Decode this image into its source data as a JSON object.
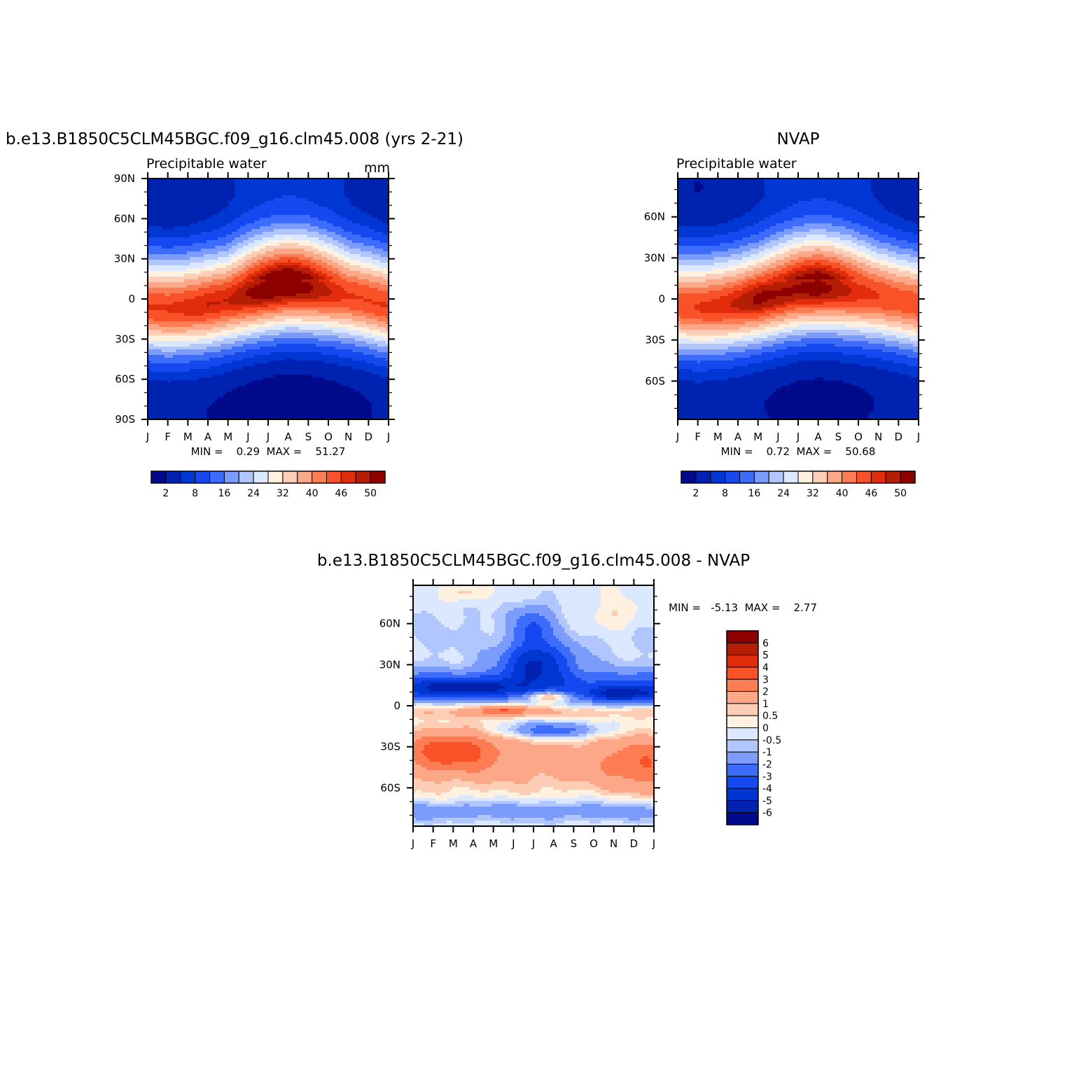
{
  "chart_data": [
    {
      "type": "heatmap",
      "title": "b.e13.B1850C5CLM45BGC.f09_g16.clm45.008 (yrs 2-21)",
      "left_string": "Precipitable water",
      "right_string": "mm",
      "x_tick_labels": [
        "J",
        "F",
        "M",
        "A",
        "M",
        "J",
        "J",
        "A",
        "S",
        "O",
        "N",
        "D",
        "J"
      ],
      "y_tick_labels": [
        "90N",
        "60N",
        "30N",
        "0",
        "30S",
        "60S",
        "90S"
      ],
      "y_tick_values": [
        90,
        60,
        30,
        0,
        -30,
        -60,
        -90
      ],
      "ylim": [
        -90,
        90
      ],
      "min_max_text": "MIN =    0.29  MAX =    51.27",
      "stats": {
        "min": 0.29,
        "max": 51.27
      },
      "field": {
        "eq_lat_by_month": [
          -6,
          -7,
          -6,
          -4,
          -1,
          3,
          6,
          8,
          7,
          5,
          2,
          -1,
          -5
        ],
        "peak_by_month": [
          46,
          46,
          47,
          48,
          48,
          50,
          51.3,
          51,
          50,
          48,
          46,
          46,
          46
        ],
        "width_lat": 34,
        "south_polar_base": 0.8,
        "north_polar_base": 2,
        "north_seasonal_amp": 5,
        "month_of_max": 7,
        "ridge_asymmetry": "north-broad"
      },
      "colorbar": {
        "orientation": "horizontal",
        "labels": [
          "2",
          "8",
          "16",
          "24",
          "32",
          "40",
          "46",
          "50"
        ],
        "levels": [
          2,
          5,
          8,
          12,
          16,
          20,
          24,
          28,
          32,
          36,
          40,
          43,
          46,
          48,
          50
        ],
        "label_every_other": true
      }
    },
    {
      "type": "heatmap",
      "title": "NVAP",
      "left_string": "Precipitable water",
      "right_string": "",
      "x_tick_labels": [
        "J",
        "F",
        "M",
        "A",
        "M",
        "J",
        "J",
        "A",
        "S",
        "O",
        "N",
        "D",
        "J"
      ],
      "y_tick_labels": [
        "60N",
        "30N",
        "0",
        "30S",
        "60S"
      ],
      "y_tick_values": [
        60,
        30,
        0,
        -30,
        -60
      ],
      "ylim": [
        -88,
        88
      ],
      "min_max_text": "MIN =    0.72  MAX =    50.68",
      "stats": {
        "min": 0.72,
        "max": 50.68
      },
      "field": {
        "eq_lat_by_month": [
          -5,
          -6,
          -5,
          -3,
          0,
          3,
          6,
          7,
          6,
          4,
          2,
          -1,
          -4
        ],
        "peak_by_month": [
          45,
          46,
          47,
          48.5,
          50.6,
          50,
          50,
          50.6,
          49,
          47,
          46,
          45,
          45
        ],
        "width_lat": 33,
        "south_polar_base": 1.5,
        "north_polar_base": 2,
        "north_seasonal_amp": 5,
        "month_of_max": 7,
        "ridge_asymmetry": "north-broad"
      },
      "colorbar": {
        "orientation": "horizontal",
        "labels": [
          "2",
          "8",
          "16",
          "24",
          "32",
          "40",
          "46",
          "50"
        ],
        "levels": [
          2,
          5,
          8,
          12,
          16,
          20,
          24,
          28,
          32,
          36,
          40,
          43,
          46,
          48,
          50
        ],
        "label_every_other": true
      }
    },
    {
      "type": "heatmap",
      "title": "b.e13.B1850C5CLM45BGC.f09_g16.clm45.008 - NVAP",
      "x_tick_labels": [
        "J",
        "F",
        "M",
        "A",
        "M",
        "J",
        "J",
        "A",
        "S",
        "O",
        "N",
        "D",
        "J"
      ],
      "y_tick_labels": [
        "60N",
        "30N",
        "0",
        "30S",
        "60S"
      ],
      "y_tick_values": [
        60,
        30,
        0,
        -30,
        -60
      ],
      "ylim": [
        -88,
        88
      ],
      "min_max_text": "MIN =   -5.13  MAX =    2.77",
      "stats": {
        "min": -5.13,
        "max": 2.77
      },
      "field": {
        "blobs": [
          {
            "month": 6.2,
            "lat": 32,
            "sm": 1.8,
            "sl": 14,
            "amp": -4.5
          },
          {
            "month": 6.0,
            "lat": 58,
            "sm": 1.0,
            "sl": 15,
            "amp": -2.5
          },
          {
            "month": 2.5,
            "lat": 14,
            "sm": 3.0,
            "sl": 6,
            "amp": -2.8
          },
          {
            "month": 10.5,
            "lat": 8,
            "sm": 1.8,
            "sl": 7,
            "amp": -2.5
          },
          {
            "month": 6.8,
            "lat": 7,
            "sm": 1.3,
            "sl": 4,
            "amp": 3.8
          },
          {
            "month": 4.5,
            "lat": -3,
            "sm": 1.5,
            "sl": 4,
            "amp": 2.5
          },
          {
            "month": 7.0,
            "lat": -18,
            "sm": 2.5,
            "sl": 6,
            "amp": -3.0
          },
          {
            "month": 2.0,
            "lat": -32,
            "sm": 2.2,
            "sl": 14,
            "amp": 2.5
          },
          {
            "month": 11.5,
            "lat": -45,
            "sm": 2.0,
            "sl": 20,
            "amp": 1.5
          },
          {
            "month": 2.5,
            "lat": 82,
            "sm": 1.0,
            "sl": 6,
            "amp": 1.0
          },
          {
            "month": 10.0,
            "lat": 65,
            "sm": 1.5,
            "sl": 12,
            "amp": 1.0
          }
        ],
        "bands": [
          {
            "lat": 17,
            "w": 10,
            "amp": -2.5
          },
          {
            "lat": 8,
            "w": 6,
            "amp": -2.0
          },
          {
            "lat": -5,
            "w": 4,
            "amp": 0.8
          },
          {
            "lat": -40,
            "w": 22,
            "amp": 1.5
          },
          {
            "lat": -77,
            "w": 8,
            "amp": -1.5
          },
          {
            "lat": 52,
            "w": 30,
            "amp": -0.6
          }
        ]
      },
      "colorbar": {
        "orientation": "vertical",
        "labels": [
          "6",
          "5",
          "4",
          "3",
          "2",
          "1",
          "0.5",
          "0",
          "-0.5",
          "-1",
          "-2",
          "-3",
          "-4",
          "-5",
          "-6"
        ],
        "levels": [
          -6,
          -5,
          -4,
          -3,
          -2,
          -1,
          -0.5,
          0,
          0.5,
          1,
          2,
          3,
          4,
          5,
          6
        ]
      }
    }
  ],
  "colors": {
    "palette": [
      "#000a8a",
      "#0022b0",
      "#0036d2",
      "#1548ee",
      "#3d6cfb",
      "#7b9cfb",
      "#b0c6fd",
      "#dce8ff",
      "#fff1e0",
      "#fdcdb5",
      "#fca888",
      "#fc7d54",
      "#f95228",
      "#e22d0d",
      "#b51d05",
      "#8c0000"
    ],
    "diff_palette": [
      "#000a8a",
      "#0022b0",
      "#0036d2",
      "#1548ee",
      "#3d6cfb",
      "#7b9cfb",
      "#b0c6fd",
      "#dce8ff",
      "#fff1e0",
      "#fdcdb5",
      "#fca888",
      "#fc7d54",
      "#f95228",
      "#e22d0d",
      "#b51d05",
      "#8c0000"
    ]
  }
}
